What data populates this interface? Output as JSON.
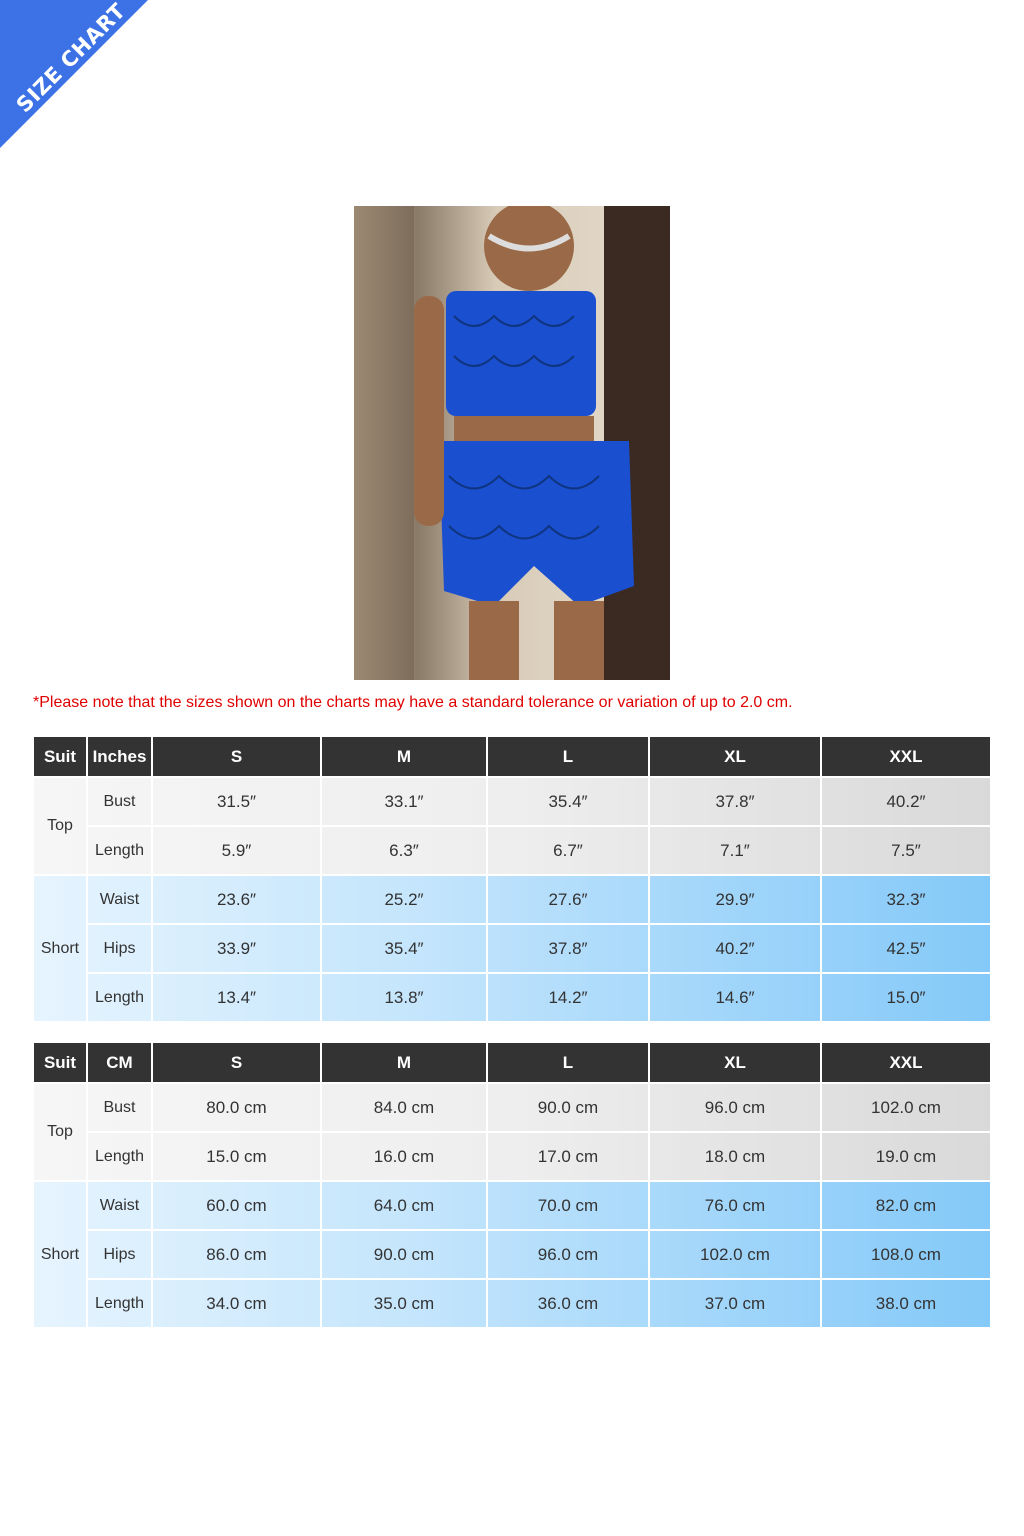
{
  "banner": {
    "label": "SIZE CHART",
    "color": "#3c72e6"
  },
  "note": "*Please note that the sizes shown on the charts may have a standard tolerance or variation of up to 2.0 cm.",
  "tables": [
    {
      "headers": [
        "Suit",
        "Inches",
        "S",
        "M",
        "L",
        "XL",
        "XXL"
      ],
      "groups": [
        {
          "name": "Top",
          "rows": [
            {
              "label": "Bust",
              "values": [
                "31.5″",
                "33.1″",
                "35.4″",
                "37.8″",
                "40.2″"
              ]
            },
            {
              "label": "Length",
              "values": [
                "5.9″",
                "6.3″",
                "6.7″",
                "7.1″",
                "7.5″"
              ]
            }
          ]
        },
        {
          "name": "Short",
          "rows": [
            {
              "label": "Waist",
              "values": [
                "23.6″",
                "25.2″",
                "27.6″",
                "29.9″",
                "32.3″"
              ]
            },
            {
              "label": "Hips",
              "values": [
                "33.9″",
                "35.4″",
                "37.8″",
                "40.2″",
                "42.5″"
              ]
            },
            {
              "label": "Length",
              "values": [
                "13.4″",
                "13.8″",
                "14.2″",
                "14.6″",
                "15.0″"
              ]
            }
          ]
        }
      ]
    },
    {
      "headers": [
        "Suit",
        "CM",
        "S",
        "M",
        "L",
        "XL",
        "XXL"
      ],
      "groups": [
        {
          "name": "Top",
          "rows": [
            {
              "label": "Bust",
              "values": [
                "80.0 cm",
                "84.0 cm",
                "90.0 cm",
                "96.0 cm",
                "102.0 cm"
              ]
            },
            {
              "label": "Length",
              "values": [
                "15.0 cm",
                "16.0 cm",
                "17.0 cm",
                "18.0 cm",
                "19.0 cm"
              ]
            }
          ]
        },
        {
          "name": "Short",
          "rows": [
            {
              "label": "Waist",
              "values": [
                "60.0 cm",
                "64.0 cm",
                "70.0 cm",
                "76.0 cm",
                "82.0 cm"
              ]
            },
            {
              "label": "Hips",
              "values": [
                "86.0 cm",
                "90.0 cm",
                "96.0 cm",
                "102.0 cm",
                "108.0 cm"
              ]
            },
            {
              "label": "Length",
              "values": [
                "34.0 cm",
                "35.0 cm",
                "36.0 cm",
                "37.0 cm",
                "38.0 cm"
              ]
            }
          ]
        }
      ]
    }
  ]
}
